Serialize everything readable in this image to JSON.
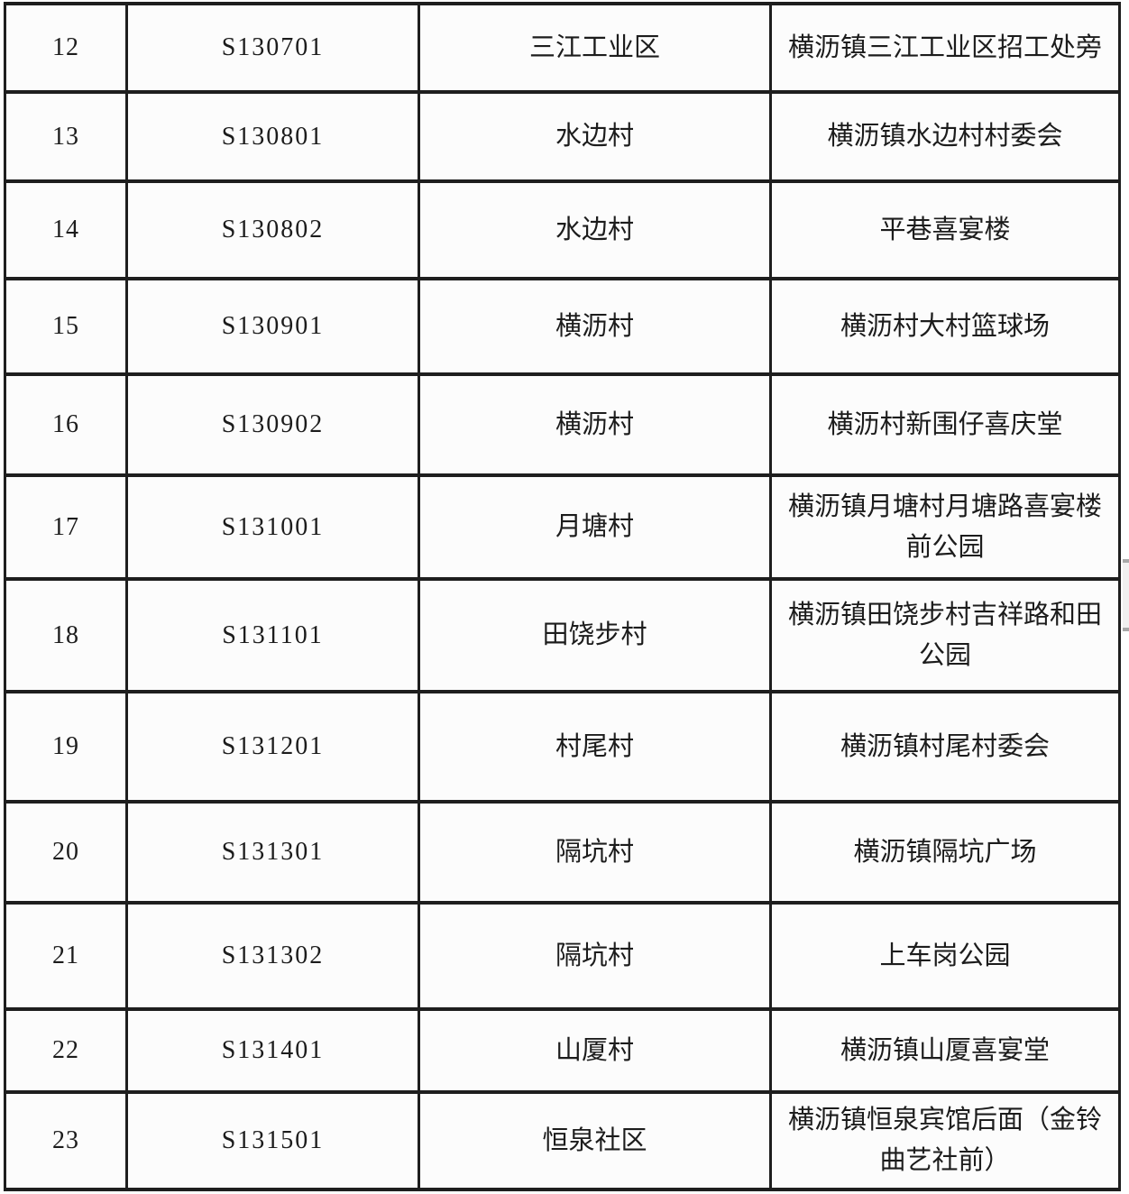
{
  "table": {
    "column_keys": [
      "index",
      "code",
      "village",
      "location"
    ],
    "rows": [
      {
        "index": "12",
        "code": "S130701",
        "village": "三江工业区",
        "location": "横沥镇三江工业区招工处旁"
      },
      {
        "index": "13",
        "code": "S130801",
        "village": "水边村",
        "location": "横沥镇水边村村委会"
      },
      {
        "index": "14",
        "code": "S130802",
        "village": "水边村",
        "location": "平巷喜宴楼"
      },
      {
        "index": "15",
        "code": "S130901",
        "village": "横沥村",
        "location": "横沥村大村篮球场"
      },
      {
        "index": "16",
        "code": "S130902",
        "village": "横沥村",
        "location": "横沥村新围仔喜庆堂"
      },
      {
        "index": "17",
        "code": "S131001",
        "village": "月塘村",
        "location": "横沥镇月塘村月塘路喜宴楼前公园"
      },
      {
        "index": "18",
        "code": "S131101",
        "village": "田饶步村",
        "location": "横沥镇田饶步村吉祥路和田公园"
      },
      {
        "index": "19",
        "code": "S131201",
        "village": "村尾村",
        "location": "横沥镇村尾村委会"
      },
      {
        "index": "20",
        "code": "S131301",
        "village": "隔坑村",
        "location": "横沥镇隔坑广场"
      },
      {
        "index": "21",
        "code": "S131302",
        "village": "隔坑村",
        "location": "上车岗公园"
      },
      {
        "index": "22",
        "code": "S131401",
        "village": "山厦村",
        "location": "横沥镇山厦喜宴堂"
      },
      {
        "index": "23",
        "code": "S131501",
        "village": "恒泉社区",
        "location": "横沥镇恒泉宾馆后面（金铃曲艺社前）"
      }
    ]
  },
  "colors": {
    "border": "#1e1e1e",
    "text": "#1c1c1c",
    "cell_background": "#fcfcfc",
    "scrollbar_track": "#f1f0f0",
    "scrollbar_caps": "#a8a8a8"
  }
}
